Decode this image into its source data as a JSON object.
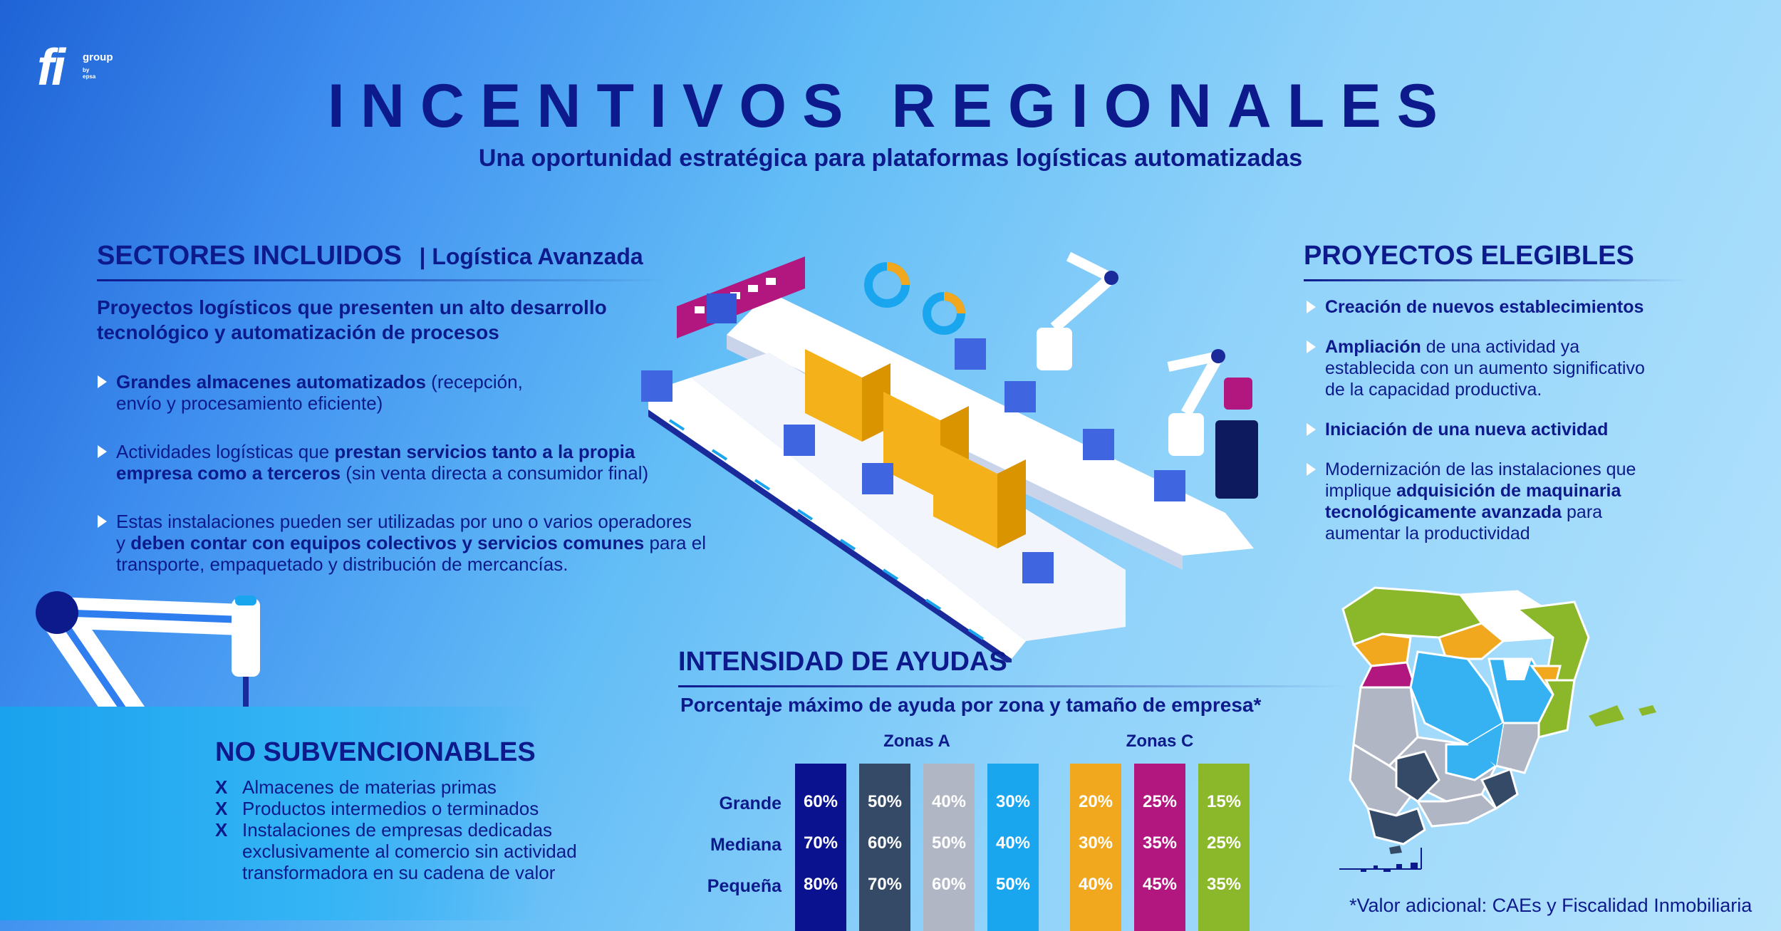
{
  "logo": {
    "mark": "fi",
    "word": "group",
    "tagline": "by epsa"
  },
  "header": {
    "title": "INCENTIVOS REGIONALES",
    "subtitle": "Una oportunidad estratégica para plataformas logísticas automatizadas"
  },
  "sectores": {
    "heading": "SECTORES INCLUIDOS",
    "heading_tag": "| Logística Avanzada",
    "intro_line1": "Proyectos logísticos que presenten un alto desarrollo",
    "intro_line2": "tecnológico y automatización de procesos",
    "bullets": [
      {
        "lines": [
          [
            {
              "t": "Grandes almacenes automatizados",
              "b": true
            },
            {
              "t": " (recepción,",
              "b": false
            }
          ],
          [
            {
              "t": "envío y procesamiento eficiente)",
              "b": false
            }
          ]
        ]
      },
      {
        "lines": [
          [
            {
              "t": "Actividades logísticas que ",
              "b": false
            },
            {
              "t": "prestan servicios tanto a la propia",
              "b": true
            }
          ],
          [
            {
              "t": "empresa como a terceros",
              "b": true
            },
            {
              "t": " (sin venta directa a consumidor final)",
              "b": false
            }
          ]
        ]
      },
      {
        "lines": [
          [
            {
              "t": "Estas instalaciones pueden ser utilizadas por uno o varios operadores",
              "b": false
            }
          ],
          [
            {
              "t": "y ",
              "b": false
            },
            {
              "t": "deben contar con equipos colectivos y servicios comunes",
              "b": true
            },
            {
              "t": " para el",
              "b": false
            }
          ],
          [
            {
              "t": "transporte, empaquetado y distribución de mercancías.",
              "b": false
            }
          ]
        ]
      }
    ]
  },
  "proyectos": {
    "heading": "PROYECTOS ELEGIBLES",
    "bullets": [
      {
        "lines": [
          [
            {
              "t": "Creación de nuevos establecimientos",
              "b": true
            }
          ]
        ]
      },
      {
        "lines": [
          [
            {
              "t": "Ampliación",
              "b": true
            },
            {
              "t": " de una actividad ya",
              "b": false
            }
          ],
          [
            {
              "t": "establecida con un aumento significativo",
              "b": false
            }
          ],
          [
            {
              "t": "de la capacidad productiva.",
              "b": false
            }
          ]
        ]
      },
      {
        "lines": [
          [
            {
              "t": "Iniciación de una nueva actividad",
              "b": true
            }
          ]
        ]
      },
      {
        "lines": [
          [
            {
              "t": "Modernización de las instalaciones que",
              "b": false
            }
          ],
          [
            {
              "t": "implique ",
              "b": false
            },
            {
              "t": "adquisición de maquinaria",
              "b": true
            }
          ],
          [
            {
              "t": "tecnológicamente avanzada",
              "b": true
            },
            {
              "t": " para",
              "b": false
            }
          ],
          [
            {
              "t": "aumentar la productividad",
              "b": false
            }
          ]
        ]
      }
    ]
  },
  "no_subvencionables": {
    "heading": "NO SUBVENCIONABLES",
    "mark": "X",
    "items": [
      [
        "Almacenes de materias primas"
      ],
      [
        "Productos intermedios o terminados"
      ],
      [
        "Instalaciones de empresas dedicadas",
        "exclusivamente al comercio sin actividad",
        "transformadora en su cadena de valor"
      ]
    ]
  },
  "intensidad": {
    "heading": "INTENSIDAD DE AYUDAS",
    "subheading": "Porcentaje máximo de ayuda por zona y tamaño de empresa*",
    "footnote": "*Valor adicional: CAEs y Fiscalidad Inmobiliaria",
    "rows": [
      "Grande",
      "Mediana",
      "Pequeña"
    ],
    "groups": [
      {
        "label": "Zonas A",
        "bars": [
          {
            "color": "#0a1290",
            "values": [
              "60%",
              "70%",
              "80%"
            ]
          },
          {
            "color": "#344a66",
            "values": [
              "50%",
              "60%",
              "70%"
            ]
          },
          {
            "color": "#b1b6c4",
            "values": [
              "40%",
              "50%",
              "60%"
            ]
          },
          {
            "color": "#1aa6ee",
            "values": [
              "30%",
              "40%",
              "50%"
            ]
          }
        ]
      },
      {
        "label": "Zonas C",
        "bars": [
          {
            "color": "#f1a81f",
            "values": [
              "20%",
              "30%",
              "40%"
            ]
          },
          {
            "color": "#b21780",
            "values": [
              "25%",
              "35%",
              "45%"
            ]
          },
          {
            "color": "#8bb82a",
            "values": [
              "15%",
              "25%",
              "35%"
            ]
          }
        ]
      }
    ]
  }
}
